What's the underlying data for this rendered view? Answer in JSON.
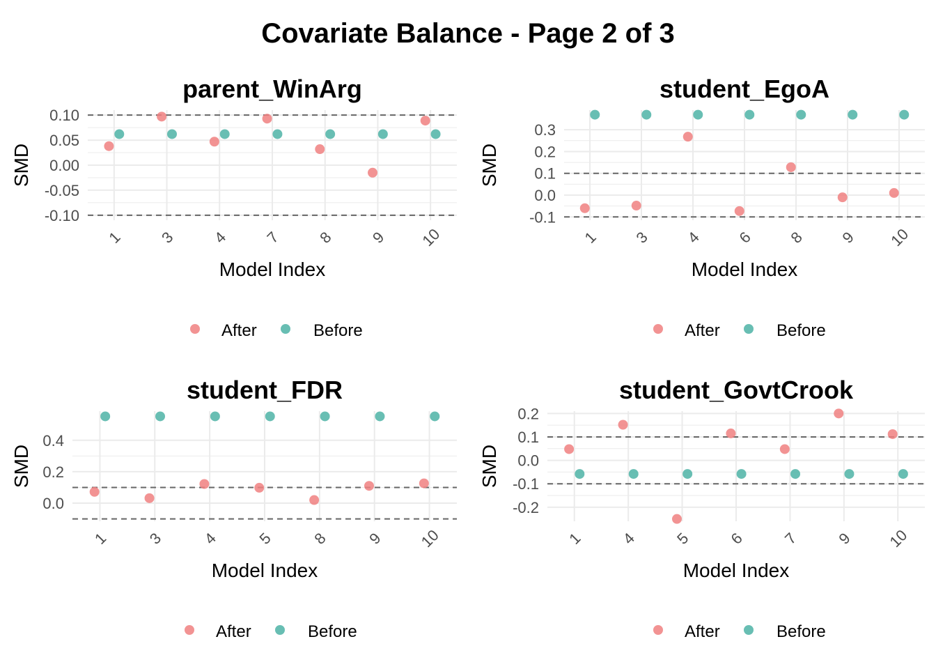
{
  "page": {
    "title": "Covariate Balance - Page 2 of 3"
  },
  "colors": {
    "after": "#F08080",
    "before": "#4DB3A6",
    "grid": "#EBEBEB",
    "threshold": "#666666",
    "tick_text": "#4D4D4D"
  },
  "chart_data": [
    {
      "type": "scatter",
      "title": "parent_WinArg",
      "xlabel": "Model Index",
      "ylabel": "SMD",
      "categories": [
        "1",
        "3",
        "4",
        "7",
        "8",
        "9",
        "10"
      ],
      "ylim": [
        -0.11,
        0.11
      ],
      "yticks": [
        0.1,
        0.05,
        0.0,
        -0.05,
        -0.1
      ],
      "ytick_labels": [
        "0.10",
        "0.05",
        "0.00",
        "-0.05",
        "-0.10"
      ],
      "thresholds": [
        0.1,
        -0.1
      ],
      "legend": "bottom",
      "series": [
        {
          "name": "After",
          "values": [
            0.038,
            0.097,
            0.047,
            0.093,
            0.032,
            -0.015,
            0.089
          ]
        },
        {
          "name": "Before",
          "values": [
            0.062,
            0.062,
            0.062,
            0.062,
            0.062,
            0.062,
            0.062
          ]
        }
      ]
    },
    {
      "type": "scatter",
      "title": "student_EgoA",
      "xlabel": "Model Index",
      "ylabel": "SMD",
      "categories": [
        "1",
        "3",
        "4",
        "6",
        "8",
        "9",
        "10"
      ],
      "ylim": [
        -0.115,
        0.39
      ],
      "yticks": [
        0.3,
        0.2,
        0.1,
        0.0,
        -0.1
      ],
      "ytick_labels": [
        "0.3",
        "0.2",
        "0.1",
        "0.0",
        "-0.1"
      ],
      "thresholds": [
        0.1,
        -0.1
      ],
      "legend": "bottom",
      "series": [
        {
          "name": "After",
          "values": [
            -0.06,
            -0.048,
            0.268,
            -0.073,
            0.128,
            -0.01,
            0.01
          ]
        },
        {
          "name": "Before",
          "values": [
            0.369,
            0.369,
            0.369,
            0.369,
            0.369,
            0.369,
            0.369
          ]
        }
      ]
    },
    {
      "type": "scatter",
      "title": "student_FDR",
      "xlabel": "Model Index",
      "ylabel": "SMD",
      "categories": [
        "1",
        "3",
        "4",
        "5",
        "8",
        "9",
        "10"
      ],
      "ylim": [
        -0.115,
        0.585
      ],
      "yticks": [
        0.4,
        0.2,
        0.0
      ],
      "ytick_labels": [
        "0.4",
        "0.2",
        "0.0"
      ],
      "thresholds": [
        0.1,
        -0.1
      ],
      "legend": "bottom",
      "series": [
        {
          "name": "After",
          "values": [
            0.072,
            0.032,
            0.122,
            0.098,
            0.02,
            0.11,
            0.126
          ]
        },
        {
          "name": "Before",
          "values": [
            0.552,
            0.552,
            0.552,
            0.552,
            0.552,
            0.552,
            0.552
          ]
        }
      ]
    },
    {
      "type": "scatter",
      "title": "student_GovtCrook",
      "xlabel": "Model Index",
      "ylabel": "SMD",
      "categories": [
        "1",
        "4",
        "5",
        "6",
        "7",
        "9",
        "10"
      ],
      "ylim": [
        -0.26,
        0.21
      ],
      "yticks": [
        0.2,
        0.1,
        0.0,
        -0.1,
        -0.2
      ],
      "ytick_labels": [
        "0.2",
        "0.1",
        "0.0",
        "-0.1",
        "-0.2"
      ],
      "thresholds": [
        0.1,
        -0.1
      ],
      "legend": "bottom",
      "series": [
        {
          "name": "After",
          "values": [
            0.048,
            0.152,
            -0.25,
            0.115,
            0.048,
            0.2,
            0.112
          ]
        },
        {
          "name": "Before",
          "values": [
            -0.058,
            -0.058,
            -0.058,
            -0.058,
            -0.058,
            -0.058,
            -0.058
          ]
        }
      ]
    }
  ]
}
